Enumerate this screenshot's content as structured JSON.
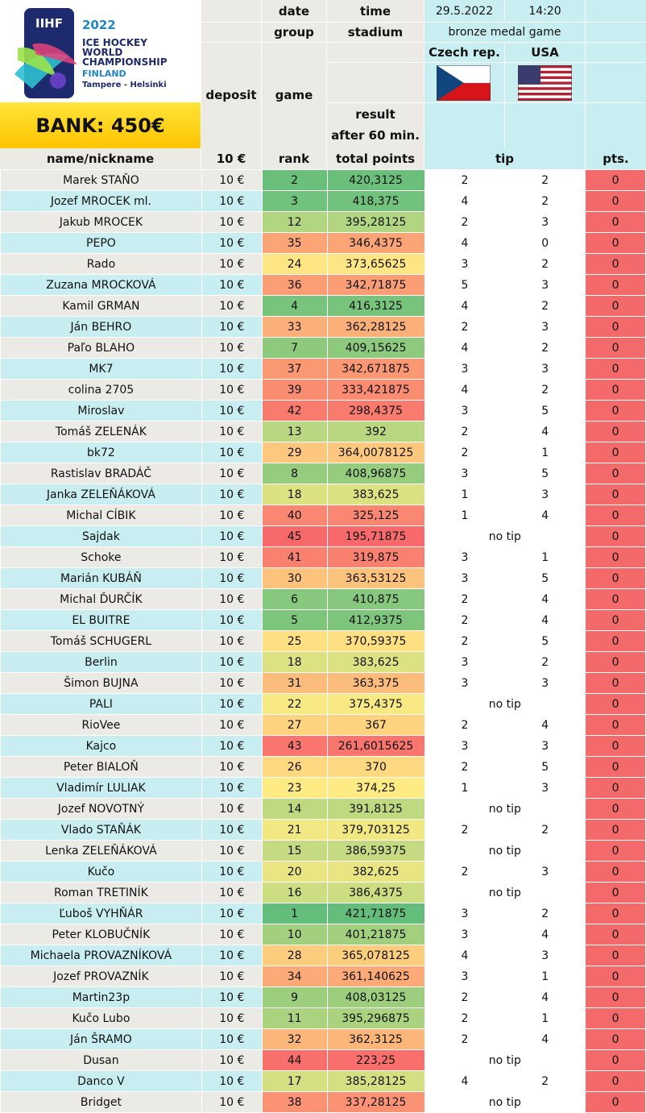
{
  "logo": {
    "brand": "IIHF",
    "year": "2022",
    "line1": "ICE HOCKEY",
    "line2": "WORLD",
    "line3": "CHAMPIONSHIP",
    "country": "FINLAND",
    "cities": "Tampere - Helsinki"
  },
  "bank": "BANK: 450€",
  "header": {
    "date_label": "date",
    "time_label": "time",
    "group_label": "group",
    "stadium_label": "stadium",
    "date_value": "29.5.2022",
    "time_value": "14:20",
    "stage": "bronze medal game",
    "deposit": "deposit",
    "game": "game",
    "result": "result",
    "after60": "after 60 min.",
    "team1": "Czech rep.",
    "team2": "USA",
    "col_name": "name/nickname",
    "col_deposit": "10 €",
    "col_rank": "rank",
    "col_total": "total points",
    "col_tip": "tip",
    "col_pts": "pts."
  },
  "colors": {
    "rank_best": "#63be7b",
    "rank_mid": "#ffeb84",
    "rank_worst": "#f8696b",
    "pts": "#f46a6a"
  },
  "rows": [
    {
      "name": "Marek STAŇO",
      "deposit": "10 €",
      "rank": "2",
      "total": "420,3125",
      "tip1": "2",
      "tip2": "2",
      "notip": "",
      "pts": "0"
    },
    {
      "name": "Jozef MROCEK ml.",
      "deposit": "10 €",
      "rank": "3",
      "total": "418,375",
      "tip1": "4",
      "tip2": "2",
      "notip": "",
      "pts": "0"
    },
    {
      "name": "Jakub MROCEK",
      "deposit": "10 €",
      "rank": "12",
      "total": "395,28125",
      "tip1": "2",
      "tip2": "3",
      "notip": "",
      "pts": "0"
    },
    {
      "name": "PEPO",
      "deposit": "10 €",
      "rank": "35",
      "total": "346,4375",
      "tip1": "4",
      "tip2": "0",
      "notip": "",
      "pts": "0"
    },
    {
      "name": "Rado",
      "deposit": "10 €",
      "rank": "24",
      "total": "373,65625",
      "tip1": "3",
      "tip2": "2",
      "notip": "",
      "pts": "0"
    },
    {
      "name": "Zuzana MROCKOVÁ",
      "deposit": "10 €",
      "rank": "36",
      "total": "342,71875",
      "tip1": "5",
      "tip2": "3",
      "notip": "",
      "pts": "0"
    },
    {
      "name": "Kamil GRMAN",
      "deposit": "10 €",
      "rank": "4",
      "total": "416,3125",
      "tip1": "4",
      "tip2": "2",
      "notip": "",
      "pts": "0"
    },
    {
      "name": "Ján BEHRO",
      "deposit": "10 €",
      "rank": "33",
      "total": "362,28125",
      "tip1": "2",
      "tip2": "3",
      "notip": "",
      "pts": "0"
    },
    {
      "name": "Paľo BLAHO",
      "deposit": "10 €",
      "rank": "7",
      "total": "409,15625",
      "tip1": "4",
      "tip2": "2",
      "notip": "",
      "pts": "0"
    },
    {
      "name": "MK7",
      "deposit": "10 €",
      "rank": "37",
      "total": "342,671875",
      "tip1": "3",
      "tip2": "3",
      "notip": "",
      "pts": "0"
    },
    {
      "name": "colina 2705",
      "deposit": "10 €",
      "rank": "39",
      "total": "333,421875",
      "tip1": "4",
      "tip2": "2",
      "notip": "",
      "pts": "0"
    },
    {
      "name": "Miroslav",
      "deposit": "10 €",
      "rank": "42",
      "total": "298,4375",
      "tip1": "3",
      "tip2": "5",
      "notip": "",
      "pts": "0"
    },
    {
      "name": "Tomáš ZELENÁK",
      "deposit": "10 €",
      "rank": "13",
      "total": "392",
      "tip1": "2",
      "tip2": "4",
      "notip": "",
      "pts": "0"
    },
    {
      "name": "bk72",
      "deposit": "10 €",
      "rank": "29",
      "total": "364,0078125",
      "tip1": "2",
      "tip2": "1",
      "notip": "",
      "pts": "0"
    },
    {
      "name": "Rastislav BRADÁČ",
      "deposit": "10 €",
      "rank": "8",
      "total": "408,96875",
      "tip1": "3",
      "tip2": "5",
      "notip": "",
      "pts": "0"
    },
    {
      "name": "Janka ZELEŇÁKOVÁ",
      "deposit": "10 €",
      "rank": "18",
      "total": "383,625",
      "tip1": "1",
      "tip2": "3",
      "notip": "",
      "pts": "0"
    },
    {
      "name": "Michal CÍBIK",
      "deposit": "10 €",
      "rank": "40",
      "total": "325,125",
      "tip1": "1",
      "tip2": "4",
      "notip": "",
      "pts": "0"
    },
    {
      "name": "Sajdak",
      "deposit": "10 €",
      "rank": "45",
      "total": "195,71875",
      "tip1": "",
      "tip2": "",
      "notip": "no tip",
      "pts": "0"
    },
    {
      "name": "Schoke",
      "deposit": "10 €",
      "rank": "41",
      "total": "319,875",
      "tip1": "3",
      "tip2": "1",
      "notip": "",
      "pts": "0"
    },
    {
      "name": "Marián KUBÁŇ",
      "deposit": "10 €",
      "rank": "30",
      "total": "363,53125",
      "tip1": "3",
      "tip2": "5",
      "notip": "",
      "pts": "0"
    },
    {
      "name": "Michal ĎURČÍK",
      "deposit": "10 €",
      "rank": "6",
      "total": "410,875",
      "tip1": "2",
      "tip2": "4",
      "notip": "",
      "pts": "0"
    },
    {
      "name": "EL BUITRE",
      "deposit": "10 €",
      "rank": "5",
      "total": "412,9375",
      "tip1": "2",
      "tip2": "4",
      "notip": "",
      "pts": "0"
    },
    {
      "name": "Tomáš SCHUGERL",
      "deposit": "10 €",
      "rank": "25",
      "total": "370,59375",
      "tip1": "2",
      "tip2": "5",
      "notip": "",
      "pts": "0"
    },
    {
      "name": "Berlin",
      "deposit": "10 €",
      "rank": "18",
      "total": "383,625",
      "tip1": "3",
      "tip2": "2",
      "notip": "",
      "pts": "0"
    },
    {
      "name": "Šimon BUJNA",
      "deposit": "10 €",
      "rank": "31",
      "total": "363,375",
      "tip1": "3",
      "tip2": "3",
      "notip": "",
      "pts": "0"
    },
    {
      "name": "PALI",
      "deposit": "10 €",
      "rank": "22",
      "total": "375,4375",
      "tip1": "",
      "tip2": "",
      "notip": "no tip",
      "pts": "0"
    },
    {
      "name": "RioVee",
      "deposit": "10 €",
      "rank": "27",
      "total": "367",
      "tip1": "2",
      "tip2": "4",
      "notip": "",
      "pts": "0"
    },
    {
      "name": "Kajco",
      "deposit": "10 €",
      "rank": "43",
      "total": "261,6015625",
      "tip1": "3",
      "tip2": "3",
      "notip": "",
      "pts": "0"
    },
    {
      "name": "Peter BIALOŇ",
      "deposit": "10 €",
      "rank": "26",
      "total": "370",
      "tip1": "2",
      "tip2": "5",
      "notip": "",
      "pts": "0"
    },
    {
      "name": "Vladimír LULIAK",
      "deposit": "10 €",
      "rank": "23",
      "total": "374,25",
      "tip1": "1",
      "tip2": "3",
      "notip": "",
      "pts": "0"
    },
    {
      "name": "Jozef NOVOTNÝ",
      "deposit": "10 €",
      "rank": "14",
      "total": "391,8125",
      "tip1": "",
      "tip2": "",
      "notip": "no tip",
      "pts": "0"
    },
    {
      "name": "Vlado STAŇÁK",
      "deposit": "10 €",
      "rank": "21",
      "total": "379,703125",
      "tip1": "2",
      "tip2": "2",
      "notip": "",
      "pts": "0"
    },
    {
      "name": "Lenka ZELEŇÁKOVÁ",
      "deposit": "10 €",
      "rank": "15",
      "total": "386,59375",
      "tip1": "",
      "tip2": "",
      "notip": "no tip",
      "pts": "0"
    },
    {
      "name": "Kučo",
      "deposit": "10 €",
      "rank": "20",
      "total": "382,625",
      "tip1": "2",
      "tip2": "3",
      "notip": "",
      "pts": "0"
    },
    {
      "name": "Roman TRETINÍK",
      "deposit": "10 €",
      "rank": "16",
      "total": "386,4375",
      "tip1": "",
      "tip2": "",
      "notip": "no tip",
      "pts": "0"
    },
    {
      "name": "Ľuboš VYHŇÁR",
      "deposit": "10 €",
      "rank": "1",
      "total": "421,71875",
      "tip1": "3",
      "tip2": "2",
      "notip": "",
      "pts": "0"
    },
    {
      "name": "Peter KLOBUČNÍK",
      "deposit": "10 €",
      "rank": "10",
      "total": "401,21875",
      "tip1": "3",
      "tip2": "4",
      "notip": "",
      "pts": "0"
    },
    {
      "name": "Michaela PROVAZNÍKOVÁ",
      "deposit": "10 €",
      "rank": "28",
      "total": "365,078125",
      "tip1": "4",
      "tip2": "3",
      "notip": "",
      "pts": "0"
    },
    {
      "name": "Jozef PROVAZNÍK",
      "deposit": "10 €",
      "rank": "34",
      "total": "361,140625",
      "tip1": "3",
      "tip2": "1",
      "notip": "",
      "pts": "0"
    },
    {
      "name": "Martin23p",
      "deposit": "10 €",
      "rank": "9",
      "total": "408,03125",
      "tip1": "2",
      "tip2": "4",
      "notip": "",
      "pts": "0"
    },
    {
      "name": "Kučo Lubo",
      "deposit": "10 €",
      "rank": "11",
      "total": "395,296875",
      "tip1": "2",
      "tip2": "1",
      "notip": "",
      "pts": "0"
    },
    {
      "name": "Ján ŠRAMO",
      "deposit": "10 €",
      "rank": "32",
      "total": "362,3125",
      "tip1": "2",
      "tip2": "4",
      "notip": "",
      "pts": "0"
    },
    {
      "name": "Dusan",
      "deposit": "10 €",
      "rank": "44",
      "total": "223,25",
      "tip1": "",
      "tip2": "",
      "notip": "no tip",
      "pts": "0"
    },
    {
      "name": "Danco V",
      "deposit": "10 €",
      "rank": "17",
      "total": "385,28125",
      "tip1": "4",
      "tip2": "2",
      "notip": "",
      "pts": "0"
    },
    {
      "name": "Bridget",
      "deposit": "10 €",
      "rank": "38",
      "total": "337,28125",
      "tip1": "",
      "tip2": "",
      "notip": "no tip",
      "pts": "0"
    }
  ]
}
